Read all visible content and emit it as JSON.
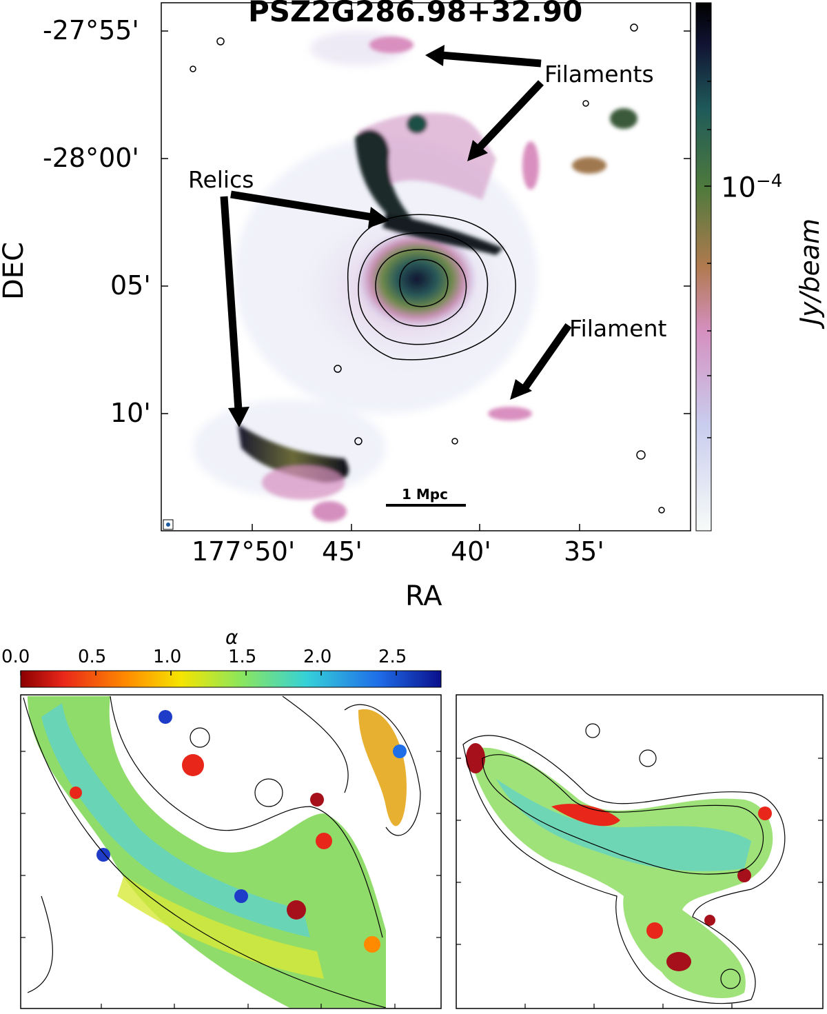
{
  "top_panel": {
    "title": "PSZ2G286.98+32.90",
    "xlabel": "RA",
    "ylabel": "DEC",
    "y_ticks": [
      "-27°55'",
      "-28°00'",
      "05'",
      "10'"
    ],
    "x_ticks": [
      "177°50'",
      "45'",
      "40'",
      "35'"
    ],
    "annotations": {
      "filaments": "Filaments",
      "relics": "Relics",
      "filament": "Filament"
    },
    "scalebar_label": "1 Mpc",
    "colorbar_label": "Jy/beam",
    "colorbar_tick": "10^-4",
    "colormap": [
      "#f7fbf8",
      "#c9cdee",
      "#d58fbf",
      "#b07a4f",
      "#4e7a3c",
      "#1f5a5a",
      "#111433",
      "#000000"
    ]
  },
  "bottom_colorbar": {
    "label": "α",
    "ticks": [
      "0.0",
      "0.5",
      "1.0",
      "1.5",
      "2.0",
      "2.5"
    ],
    "colormap": [
      "#8b0000",
      "#e8261a",
      "#ff8a00",
      "#f5e400",
      "#8ee65a",
      "#35d1d8",
      "#1f6ee8",
      "#0a0f8c"
    ]
  }
}
